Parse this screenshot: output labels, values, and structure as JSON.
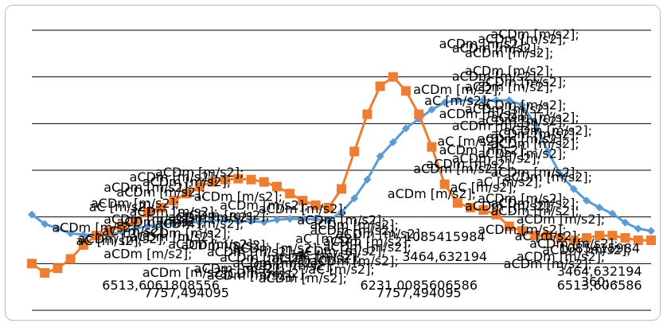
{
  "chart_data": {
    "type": "line",
    "grid": "horizontal",
    "ylim": [
      -20,
      40
    ],
    "x": [
      1,
      2,
      3,
      4,
      5,
      6,
      7,
      8,
      9,
      10,
      11,
      12,
      13,
      14,
      15,
      16,
      17,
      18,
      19,
      20,
      21,
      22,
      23,
      24,
      25,
      26,
      27,
      28,
      29,
      30,
      31,
      32,
      33,
      34,
      35,
      36,
      37,
      38,
      39,
      40,
      41,
      42,
      43,
      44,
      45,
      46,
      47,
      48,
      49
    ],
    "series": [
      {
        "color": "#5b9bd5",
        "marker": "diamond",
        "values": [
          0.5,
          -1.5,
          -2.5,
          -3.5,
          -3.8,
          -4.0,
          -3.8,
          -3.2,
          -2.5,
          -2.0,
          -1.5,
          -1.5,
          -1.0,
          -1.2,
          -0.8,
          -0.7,
          -1.0,
          -0.9,
          -1.1,
          -0.6,
          -0.4,
          -0.5,
          -0.5,
          -0.8,
          1.0,
          4.0,
          8.0,
          13.0,
          16.0,
          19.0,
          21.0,
          23.0,
          24.5,
          25.0,
          25.0,
          25.0,
          25.0,
          25.0,
          24.0,
          20.0,
          14.0,
          9.0,
          6.0,
          3.5,
          2.0,
          0.7,
          -1.2,
          -2.5,
          -3.0
        ]
      },
      {
        "color": "#ed7d31",
        "marker": "square",
        "values": [
          -10.0,
          -12.0,
          -11.0,
          -9.0,
          -6.0,
          -4.0,
          -3.0,
          -2.0,
          -1.0,
          1.0,
          2.0,
          3.5,
          5.0,
          6.5,
          7.5,
          8.0,
          8.2,
          8.0,
          7.5,
          6.5,
          5.0,
          3.5,
          2.5,
          2.0,
          6.0,
          14.0,
          22.0,
          28.0,
          30.0,
          27.0,
          22.0,
          15.0,
          7.0,
          3.0,
          2.0,
          1.5,
          0.5,
          -2.0,
          -3.0,
          -4.0,
          -4.0,
          -4.5,
          -5.0,
          -4.5,
          -4.0,
          -4.0,
          -4.5,
          -5.0,
          -5.0
        ]
      }
    ],
    "labels": [
      {
        "text": "aCDm [m/s2];",
        "x": 38,
        "y": 1.4
      },
      {
        "text": "aCDm [m/s2];",
        "x": 34,
        "y": 26.4
      },
      {
        "text": "aC [m/s2];",
        "x": 34,
        "y": 24.0
      },
      {
        "text": "aCDm [m/s2];",
        "x": 40,
        "y": 38.2
      },
      {
        "text": "aCDm [m/s2];",
        "x": 39,
        "y": 37.2
      },
      {
        "text": "aCDm [m/s2];",
        "x": 36,
        "y": 36.2
      },
      {
        "text": "aCDm [m/s2];",
        "x": 37,
        "y": 35.2
      },
      {
        "text": "aCDm [m/s2];",
        "x": 38,
        "y": 34.2
      },
      {
        "text": "aCDm [m/s2];",
        "x": 36,
        "y": 21.2
      },
      {
        "text": "aCDm [m/s2];",
        "x": 40,
        "y": 20.4
      },
      {
        "text": "aCDm [m/s2];",
        "x": 39,
        "y": 19.6
      },
      {
        "text": "aCDm [m/s2];",
        "x": 37,
        "y": 18.6
      },
      {
        "text": "aC [m/s2];",
        "x": 35,
        "y": 15.3
      },
      {
        "text": "aCDm [m/s2];",
        "x": 36,
        "y": 13.4
      },
      {
        "text": "aCDm [m/s2];",
        "x": 37,
        "y": 11.6
      },
      {
        "text": "aCDm [m/s2];",
        "x": 35,
        "y": 10.4
      },
      {
        "text": "aCDm [m/s2];",
        "x": 34,
        "y": 9.4
      },
      {
        "text": "aC [m/s2];",
        "x": 38,
        "y": 6.6
      },
      {
        "text": "aC [m/s2];",
        "x": 36,
        "y": 5.4
      },
      {
        "text": "aCDm [m/s2];",
        "x": 32,
        "y": 4.0
      },
      {
        "text": "aCDm [m/s2];",
        "x": 14,
        "y": 8.6
      },
      {
        "text": "aCDm [m/s2];",
        "x": 12,
        "y": 7.6
      },
      {
        "text": "aCDm [m/s2];",
        "x": 13,
        "y": 6.6
      },
      {
        "text": "aCDm [m/s2];",
        "x": 10,
        "y": 5.4
      },
      {
        "text": "aCDm [m/s2];",
        "x": 11,
        "y": 4.4
      },
      {
        "text": "aCDm [m/s2];",
        "x": 17,
        "y": 3.4
      },
      {
        "text": "aCDm [m/s2];",
        "x": 9,
        "y": 2.0
      },
      {
        "text": "aC [m/s2];",
        "x": 8,
        "y": 1.2
      },
      {
        "text": "aCDm [m/s2];",
        "x": 12,
        "y": 0.2
      },
      {
        "text": "aCDm [m/s2];",
        "x": 16,
        "y": -0.6
      },
      {
        "text": "aCDm [m/s2];",
        "x": 10,
        "y": -1.4
      },
      {
        "text": "aCDm [m/s2];",
        "x": 14,
        "y": -2.4
      },
      {
        "text": "aCDm [m/s2];",
        "x": 6,
        "y": -3.2
      },
      {
        "text": "aC [m/s2];",
        "x": 9,
        "y": -4.0
      },
      {
        "text": "aCDm [m/s2];",
        "x": 12,
        "y": -5.2
      },
      {
        "text": "aC [m/s2];",
        "x": 7,
        "y": -6.0
      },
      {
        "text": "aCDm [m/s2];",
        "x": 15,
        "y": -6.8
      },
      {
        "text": "aCDm [m/s2];",
        "x": 20,
        "y": -7.6
      },
      {
        "text": "aCDm [m/s2];",
        "x": 18,
        "y": -8.4
      },
      {
        "text": "aC [m/s2];",
        "x": 24,
        "y": -9.2
      },
      {
        "text": "aCDm [m/s2];",
        "x": 22,
        "y": 0.8
      },
      {
        "text": "aCDm [m/s2];",
        "x": 25,
        "y": -1.6
      },
      {
        "text": "aCDm [m/s2];",
        "x": 26,
        "y": -3.8
      },
      {
        "text": "aC [m/s2];",
        "x": 24,
        "y": -5.6
      },
      {
        "text": "aCDm [m/s2];",
        "x": 27,
        "y": -7.4
      },
      {
        "text": "aCDm [m/s2];",
        "x": 23,
        "y": -9.8
      },
      {
        "text": "aCDm [m/s2];",
        "x": 21,
        "y": -11.4
      },
      {
        "text": "aC [m/s2];",
        "x": 25,
        "y": -12.2
      },
      {
        "text": "aCDm [m/s2];",
        "x": 19,
        "y": -13.0
      },
      {
        "text": "aCDm [m/s2];",
        "x": 22,
        "y": -14.0
      },
      {
        "text": "aCDm [m/s2];",
        "x": 40,
        "y": 0.4
      },
      {
        "text": "aCDm [m/s2];",
        "x": 42,
        "y": -1.4
      },
      {
        "text": "aCDm [m/s2];",
        "x": 39,
        "y": -3.6
      },
      {
        "text": "aC [m/s2];",
        "x": 41,
        "y": -5.0
      },
      {
        "text": "aCDm [m/s2];",
        "x": 43,
        "y": -6.6
      },
      {
        "text": "aCDm [m/s2];",
        "x": 44,
        "y": -8.0
      },
      {
        "text": "aCDm [m/s2];",
        "x": 42,
        "y": -9.4
      },
      {
        "text": "aCDm [m/s2];",
        "x": 41,
        "y": -11.0
      },
      {
        "text": "aCDm [m/s2];",
        "x": 38,
        "y": 30.4
      },
      {
        "text": "aCDm [m/s2];",
        "x": 37,
        "y": 29.2
      },
      {
        "text": "aCDm [m/s2];",
        "x": 39,
        "y": 28.0
      },
      {
        "text": "aCDm [m/s2];",
        "x": 38,
        "y": 27.0
      },
      {
        "text": "aCDm [m/s2];",
        "x": 39,
        "y": 23.0
      },
      {
        "text": "aCDm [m/s2];",
        "x": 38,
        "y": 22.2
      },
      {
        "text": "aCDm [m/s2];",
        "x": 41,
        "y": 17.6
      },
      {
        "text": "aCDm [m/s2];",
        "x": 40,
        "y": 16.8
      },
      {
        "text": "aCDm [m/s2];",
        "x": 39,
        "y": 15.8
      },
      {
        "text": "aCDm [m/s2];",
        "x": 40,
        "y": 14.8
      },
      {
        "text": "aCDm [m/s2];",
        "x": 39,
        "y": 12.6
      },
      {
        "text": "aCDm [m/s2];",
        "x": 40,
        "y": 8.6
      },
      {
        "text": "aCDm [m/s2];",
        "x": 41,
        "y": 7.6
      },
      {
        "text": "aCDm [m/s2];",
        "x": 39,
        "y": 3.0
      },
      {
        "text": "aCDm [m/s2];",
        "x": 40,
        "y": 2.0
      },
      {
        "text": "aCDm [m/s2];",
        "x": 26,
        "y": -2.6
      },
      {
        "text": "aCDm [m/s2];",
        "x": 28,
        "y": -4.6
      },
      {
        "text": "aCDm [m/s2];",
        "x": 27,
        "y": -6.2
      },
      {
        "text": "aCDm [m/s2];",
        "x": 25,
        "y": -8.2
      },
      {
        "text": "aCDm [m/s2];",
        "x": 26,
        "y": -10.4
      },
      {
        "text": "aCDm [m/s2];",
        "x": 20,
        "y": -10.8
      },
      {
        "text": "aCDm [m/s2];",
        "x": 17,
        "y": -12.0
      },
      {
        "text": "aCDm [m/s2];",
        "x": 13,
        "y": -12.8
      },
      {
        "text": "aCDm [m/s2];",
        "x": 18,
        "y": -13.4
      },
      {
        "text": "aCDm [m/s2];",
        "x": 15,
        "y": -1.0
      },
      {
        "text": "aCDm [m/s2];",
        "x": 19,
        "y": 1.6
      },
      {
        "text": "aCDm [m/s2];",
        "x": 11,
        "y": -2.0
      },
      {
        "text": "aCDm [m/s2];",
        "x": 13,
        "y": -4.4
      },
      {
        "text": "aCDm [m/s2];",
        "x": 8,
        "y": -5.6
      },
      {
        "text": "aCDm [m/s2];",
        "x": 16,
        "y": -7.0
      },
      {
        "text": "aCDm [m/s2];",
        "x": 10,
        "y": -8.8
      },
      {
        "text": "aCDm [m/s2];",
        "x": 19,
        "y": -9.6
      },
      {
        "text": "6513,606586",
        "x": 45,
        "y": -15.6
      },
      {
        "text": "6513,6061808556",
        "x": 11,
        "y": -15.6
      },
      {
        "text": "6231,0085606586",
        "x": 31,
        "y": -15.6
      },
      {
        "text": "7757,494095",
        "x": 31,
        "y": -17.2
      },
      {
        "text": "7757,494095",
        "x": 13,
        "y": -17.2
      },
      {
        "text": "3464,632194",
        "x": 45,
        "y": -12.6
      },
      {
        "text": "3464,632194",
        "x": 33,
        "y": -9.4
      },
      {
        "text": "1085415984",
        "x": 45,
        "y": -7.6
      },
      {
        "text": "1085415984",
        "x": 33,
        "y": -5.2
      },
      {
        "text": "360; -",
        "x": 45,
        "y": -14.8
      }
    ]
  }
}
